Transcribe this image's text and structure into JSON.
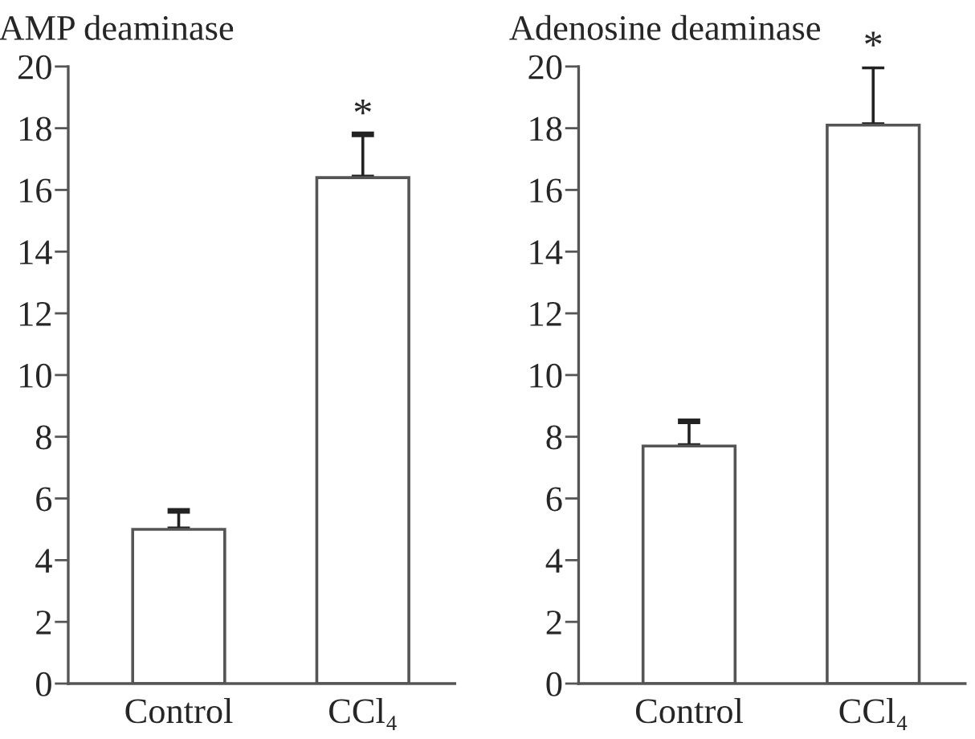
{
  "chart_data": [
    {
      "type": "bar",
      "title": "AMP deaminase",
      "categories": [
        "Control",
        "CCl₄"
      ],
      "values": [
        5.0,
        16.4
      ],
      "errors": [
        [
          5.0,
          5.6
        ],
        [
          16.4,
          17.8
        ]
      ],
      "color": "#ffffff",
      "ylim": [
        0,
        20
      ],
      "yticks": [
        0,
        2,
        4,
        6,
        8,
        10,
        12,
        14,
        16,
        18,
        20
      ],
      "grid": false,
      "legend": false,
      "annotations": [
        {
          "text": "*",
          "x": "CCl₄",
          "y": 17.8
        }
      ]
    },
    {
      "type": "bar",
      "title": "Adenosine deaminase",
      "categories": [
        "Control",
        "CCl₄"
      ],
      "values": [
        7.7,
        18.1
      ],
      "errors": [
        [
          7.7,
          8.5
        ],
        [
          18.1,
          20.0
        ]
      ],
      "color": "#ffffff",
      "ylim": [
        0,
        20
      ],
      "yticks": [
        0,
        2,
        4,
        6,
        8,
        10,
        12,
        14,
        16,
        18,
        20
      ],
      "grid": false,
      "legend": false,
      "annotations": [
        {
          "text": "*",
          "x": "CCl₄",
          "y": 20.0
        }
      ]
    }
  ]
}
